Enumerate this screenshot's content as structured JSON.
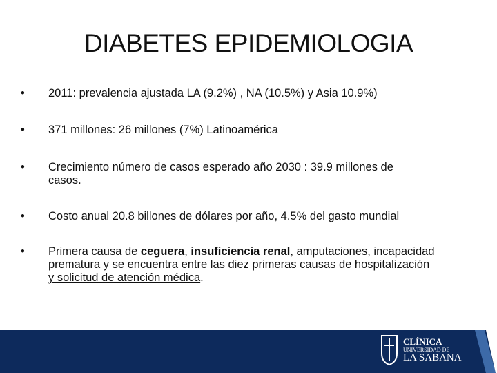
{
  "header": {
    "title": "DIABETES EPIDEMIOLOGIA"
  },
  "bullets": [
    [
      "2011: prevalencia ajustada LA (9.2%) , NA (10.5%) y Asia 10.9%)"
    ],
    [
      "371 millones:  26 millones (7%) Latinoamérica"
    ],
    [
      "Crecimiento número de casos esperado  año 2030 : 39.9 millones de casos."
    ],
    [
      "Costo anual 20.8 billones de dólares por año, 4.5% del gasto mundial"
    ],
    [
      "Primera causa de ",
      "ceguera",
      ", ",
      "insuficiencia renal",
      ", amputaciones, incapacidad prematura y se encuentra entre las ",
      "diez primeras causas de hospitalización y solicitud de atención médica",
      "."
    ]
  ],
  "footer": {
    "logo": [
      "CLÍNICA",
      "UNIVERSIDAD DE",
      "LA SABANA"
    ]
  }
}
